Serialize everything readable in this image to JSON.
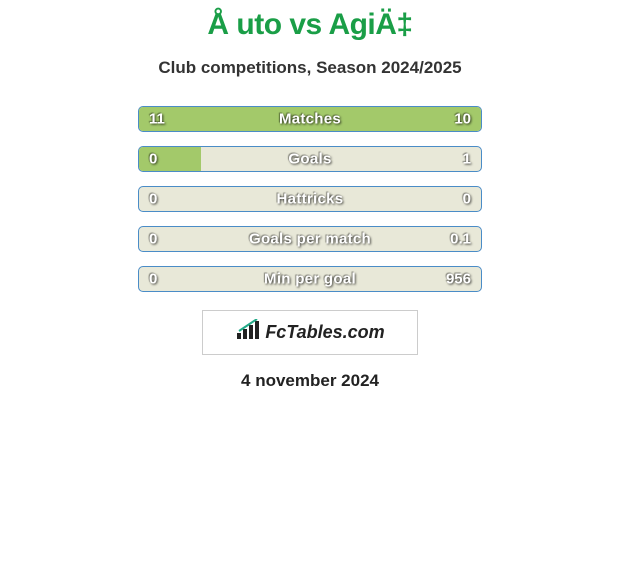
{
  "title": "Å uto vs AgiÄ‡",
  "subtitle": "Club competitions, Season 2024/2025",
  "background_color": "#ffffff",
  "title_color": "#1a9e47",
  "title_fontsize": 30,
  "subtitle_color": "#333333",
  "subtitle_fontsize": 17,
  "bar_border_color": "#4a8cc7",
  "bar_fill_color": "#a3c96a",
  "bar_empty_color": "#e8e8d8",
  "value_text_color": "#ffffff",
  "stats": [
    {
      "label": "Matches",
      "left_value": "11",
      "right_value": "10",
      "left_pct": 100,
      "right_pct": 0
    },
    {
      "label": "Goals",
      "left_value": "0",
      "right_value": "1",
      "left_pct": 18,
      "right_pct": 0
    },
    {
      "label": "Hattricks",
      "left_value": "0",
      "right_value": "0",
      "left_pct": 0,
      "right_pct": 0
    },
    {
      "label": "Goals per match",
      "left_value": "0",
      "right_value": "0.1",
      "left_pct": 0,
      "right_pct": 0
    },
    {
      "label": "Min per goal",
      "left_value": "0",
      "right_value": "956",
      "left_pct": 0,
      "right_pct": 0
    }
  ],
  "logo_text": "FcTables.com",
  "date_text": "4 november 2024",
  "ellipses": {
    "color": "#ffffff"
  }
}
